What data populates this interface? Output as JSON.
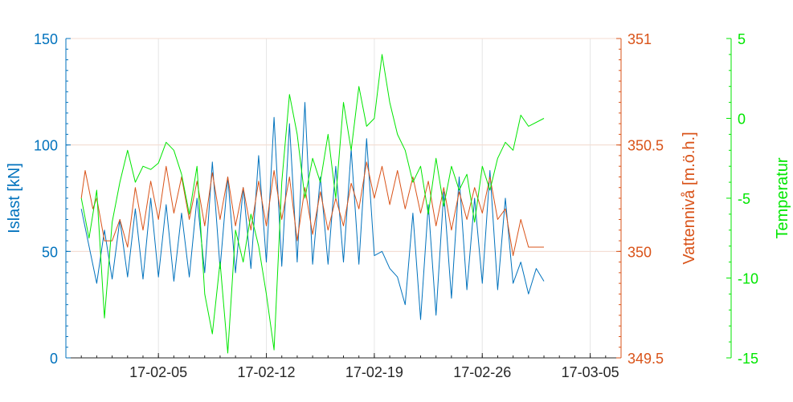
{
  "chart_data": {
    "type": "line",
    "x_axis": {
      "type": "date",
      "range": [
        "2017-01-30",
        "2017-03-07"
      ],
      "ticks": [
        {
          "date": "2017-02-05",
          "label": "17-02-05"
        },
        {
          "date": "2017-02-12",
          "label": "17-02-12"
        },
        {
          "date": "2017-02-19",
          "label": "17-02-19"
        },
        {
          "date": "2017-02-26",
          "label": "17-02-26"
        },
        {
          "date": "2017-03-05",
          "label": "17-03-05"
        }
      ]
    },
    "axes": [
      {
        "id": "islast",
        "side": "left",
        "label": "Islast [kN]",
        "color": "#0072BD",
        "range": [
          0,
          150
        ],
        "ticks": [
          "0",
          "50",
          "100",
          "150"
        ]
      },
      {
        "id": "vatten",
        "side": "right",
        "label": "Vattennivå [m.ö.h.]",
        "color": "#D95319",
        "range": [
          349.5,
          351
        ],
        "ticks": [
          "349.5",
          "350",
          "350.5",
          "351"
        ]
      },
      {
        "id": "temp",
        "side": "right-outer",
        "label": "Temperatur",
        "color": "#00E600",
        "range": [
          -15,
          5
        ],
        "ticks": [
          "-15",
          "-10",
          "-5",
          "0",
          "5"
        ]
      }
    ],
    "grid": true,
    "series": [
      {
        "axis": "islast",
        "color": "#0072BD",
        "points": [
          [
            "2017-01-31",
            70
          ],
          [
            "2017-02-01",
            35
          ],
          [
            "2017-02-01 12:00",
            60
          ],
          [
            "2017-02-02",
            37
          ],
          [
            "2017-02-02 12:00",
            65
          ],
          [
            "2017-02-03",
            38
          ],
          [
            "2017-02-03 12:00",
            70
          ],
          [
            "2017-02-04",
            37
          ],
          [
            "2017-02-04 12:00",
            75
          ],
          [
            "2017-02-05",
            38
          ],
          [
            "2017-02-05 12:00",
            72
          ],
          [
            "2017-02-06",
            36
          ],
          [
            "2017-02-06 12:00",
            68
          ],
          [
            "2017-02-07",
            38
          ],
          [
            "2017-02-07 12:00",
            75
          ],
          [
            "2017-02-08",
            40
          ],
          [
            "2017-02-08 12:00",
            92
          ],
          [
            "2017-02-09",
            42
          ],
          [
            "2017-02-09 12:00",
            85
          ],
          [
            "2017-02-10",
            40
          ],
          [
            "2017-02-10 12:00",
            80
          ],
          [
            "2017-02-11",
            42
          ],
          [
            "2017-02-11 12:00",
            95
          ],
          [
            "2017-02-12",
            45
          ],
          [
            "2017-02-12 12:00",
            113
          ],
          [
            "2017-02-13",
            43
          ],
          [
            "2017-02-13 12:00",
            110
          ],
          [
            "2017-02-14",
            45
          ],
          [
            "2017-02-14 12:00",
            120
          ],
          [
            "2017-02-15",
            44
          ],
          [
            "2017-02-15 12:00",
            85
          ],
          [
            "2017-02-16",
            44
          ],
          [
            "2017-02-16 12:00",
            90
          ],
          [
            "2017-02-17",
            45
          ],
          [
            "2017-02-17 12:00",
            98
          ],
          [
            "2017-02-18",
            44
          ],
          [
            "2017-02-18 12:00",
            103
          ],
          [
            "2017-02-19",
            48
          ],
          [
            "2017-02-19 12:00",
            50
          ],
          [
            "2017-02-20",
            42
          ],
          [
            "2017-02-20 12:00",
            38
          ],
          [
            "2017-02-21",
            25
          ],
          [
            "2017-02-21 12:00",
            68
          ],
          [
            "2017-02-22",
            18
          ],
          [
            "2017-02-22 12:00",
            72
          ],
          [
            "2017-02-23",
            20
          ],
          [
            "2017-02-23 12:00",
            78
          ],
          [
            "2017-02-24",
            28
          ],
          [
            "2017-02-24 12:00",
            85
          ],
          [
            "2017-02-25",
            32
          ],
          [
            "2017-02-25 12:00",
            75
          ],
          [
            "2017-02-26",
            35
          ],
          [
            "2017-02-26 12:00",
            88
          ],
          [
            "2017-02-27",
            32
          ],
          [
            "2017-02-27 12:00",
            75
          ],
          [
            "2017-02-28",
            35
          ],
          [
            "2017-02-28 12:00",
            45
          ],
          [
            "2017-03-01",
            30
          ],
          [
            "2017-03-01 12:00",
            42
          ],
          [
            "2017-03-02",
            36
          ]
        ]
      },
      {
        "axis": "vatten",
        "color": "#D95319",
        "points": [
          [
            "2017-01-31",
            350.25
          ],
          [
            "2017-01-31 06:00",
            350.38
          ],
          [
            "2017-01-31 18:00",
            350.2
          ],
          [
            "2017-02-01",
            350.25
          ],
          [
            "2017-02-01 12:00",
            350.05
          ],
          [
            "2017-02-02",
            350.05
          ],
          [
            "2017-02-02 12:00",
            350.15
          ],
          [
            "2017-02-03",
            350.02
          ],
          [
            "2017-02-03 12:00",
            350.3
          ],
          [
            "2017-02-04",
            350.1
          ],
          [
            "2017-02-04 12:00",
            350.33
          ],
          [
            "2017-02-05",
            350.15
          ],
          [
            "2017-02-05 12:00",
            350.4
          ],
          [
            "2017-02-06",
            350.18
          ],
          [
            "2017-02-06 12:00",
            350.35
          ],
          [
            "2017-02-07",
            350.15
          ],
          [
            "2017-02-07 12:00",
            350.33
          ],
          [
            "2017-02-08",
            350.12
          ],
          [
            "2017-02-08 12:00",
            350.37
          ],
          [
            "2017-02-09",
            350.15
          ],
          [
            "2017-02-09 12:00",
            350.35
          ],
          [
            "2017-02-10",
            350.12
          ],
          [
            "2017-02-10 12:00",
            350.3
          ],
          [
            "2017-02-11",
            350.1
          ],
          [
            "2017-02-11 12:00",
            350.33
          ],
          [
            "2017-02-12",
            350.12
          ],
          [
            "2017-02-12 12:00",
            350.38
          ],
          [
            "2017-02-13",
            350.15
          ],
          [
            "2017-02-13 12:00",
            350.35
          ],
          [
            "2017-02-14",
            350.05
          ],
          [
            "2017-02-14 12:00",
            350.3
          ],
          [
            "2017-02-15",
            350.08
          ],
          [
            "2017-02-15 12:00",
            350.28
          ],
          [
            "2017-02-16",
            350.1
          ],
          [
            "2017-02-16 12:00",
            350.25
          ],
          [
            "2017-02-17",
            350.12
          ],
          [
            "2017-02-17 12:00",
            350.32
          ],
          [
            "2017-02-18",
            350.2
          ],
          [
            "2017-02-18 12:00",
            350.42
          ],
          [
            "2017-02-19",
            350.25
          ],
          [
            "2017-02-19 12:00",
            350.4
          ],
          [
            "2017-02-20",
            350.22
          ],
          [
            "2017-02-20 12:00",
            350.38
          ],
          [
            "2017-02-21",
            350.2
          ],
          [
            "2017-02-21 12:00",
            350.35
          ],
          [
            "2017-02-22",
            350.18
          ],
          [
            "2017-02-22 12:00",
            350.33
          ],
          [
            "2017-02-23",
            350.12
          ],
          [
            "2017-02-23 12:00",
            350.3
          ],
          [
            "2017-02-24",
            350.1
          ],
          [
            "2017-02-24 12:00",
            350.28
          ],
          [
            "2017-02-25",
            350.15
          ],
          [
            "2017-02-25 12:00",
            350.3
          ],
          [
            "2017-02-26",
            350.18
          ],
          [
            "2017-02-26 12:00",
            350.35
          ],
          [
            "2017-02-27",
            350.15
          ],
          [
            "2017-02-27 12:00",
            350.2
          ],
          [
            "2017-02-28",
            349.98
          ],
          [
            "2017-02-28 12:00",
            350.15
          ],
          [
            "2017-03-01",
            350.02
          ],
          [
            "2017-03-02",
            350.02
          ]
        ]
      },
      {
        "axis": "temp",
        "color": "#00E600",
        "points": [
          [
            "2017-01-31",
            -5.0
          ],
          [
            "2017-01-31 12:00",
            -7.5
          ],
          [
            "2017-02-01",
            -4.5
          ],
          [
            "2017-02-01 12:00",
            -12.5
          ],
          [
            "2017-02-02",
            -6.5
          ],
          [
            "2017-02-02 12:00",
            -4.0
          ],
          [
            "2017-02-03",
            -2.0
          ],
          [
            "2017-02-03 12:00",
            -4.0
          ],
          [
            "2017-02-04",
            -3.0
          ],
          [
            "2017-02-04 12:00",
            -3.2
          ],
          [
            "2017-02-05",
            -2.8
          ],
          [
            "2017-02-05 12:00",
            -1.5
          ],
          [
            "2017-02-06",
            -2.0
          ],
          [
            "2017-02-06 12:00",
            -3.5
          ],
          [
            "2017-02-07",
            -6.0
          ],
          [
            "2017-02-07 12:00",
            -3.0
          ],
          [
            "2017-02-08",
            -11.0
          ],
          [
            "2017-02-08 12:00",
            -13.5
          ],
          [
            "2017-02-09",
            -9.0
          ],
          [
            "2017-02-09 12:00",
            -14.7
          ],
          [
            "2017-02-10",
            -7.0
          ],
          [
            "2017-02-10 12:00",
            -9.0
          ],
          [
            "2017-02-11",
            -6.0
          ],
          [
            "2017-02-11 12:00",
            -8.0
          ],
          [
            "2017-02-12",
            -11.0
          ],
          [
            "2017-02-12 12:00",
            -14.5
          ],
          [
            "2017-02-13",
            -4.0
          ],
          [
            "2017-02-13 12:00",
            1.5
          ],
          [
            "2017-02-14",
            -1.0
          ],
          [
            "2017-02-14 12:00",
            -5.0
          ],
          [
            "2017-02-15",
            -2.5
          ],
          [
            "2017-02-15 12:00",
            -4.0
          ],
          [
            "2017-02-16",
            -1.0
          ],
          [
            "2017-02-16 12:00",
            -5.0
          ],
          [
            "2017-02-17",
            1.0
          ],
          [
            "2017-02-17 12:00",
            -2.0
          ],
          [
            "2017-02-18",
            2.0
          ],
          [
            "2017-02-18 12:00",
            -0.5
          ],
          [
            "2017-02-19",
            0.0
          ],
          [
            "2017-02-19 12:00",
            4.0
          ],
          [
            "2017-02-20",
            1.0
          ],
          [
            "2017-02-20 12:00",
            -1.0
          ],
          [
            "2017-02-21",
            -2.0
          ],
          [
            "2017-02-21 12:00",
            -4.0
          ],
          [
            "2017-02-22",
            -3.0
          ],
          [
            "2017-02-22 12:00",
            -6.0
          ],
          [
            "2017-02-23",
            -2.5
          ],
          [
            "2017-02-23 12:00",
            -5.5
          ],
          [
            "2017-02-24",
            -3.0
          ],
          [
            "2017-02-24 12:00",
            -4.5
          ],
          [
            "2017-02-25",
            -3.5
          ],
          [
            "2017-02-25 12:00",
            -6.5
          ],
          [
            "2017-02-26",
            -3.0
          ],
          [
            "2017-02-26 12:00",
            -4.5
          ],
          [
            "2017-02-27",
            -2.5
          ],
          [
            "2017-02-27 12:00",
            -1.5
          ],
          [
            "2017-02-28",
            -2.0
          ],
          [
            "2017-02-28 12:00",
            0.2
          ],
          [
            "2017-03-01",
            -0.5
          ],
          [
            "2017-03-02",
            0.0
          ]
        ]
      }
    ]
  }
}
